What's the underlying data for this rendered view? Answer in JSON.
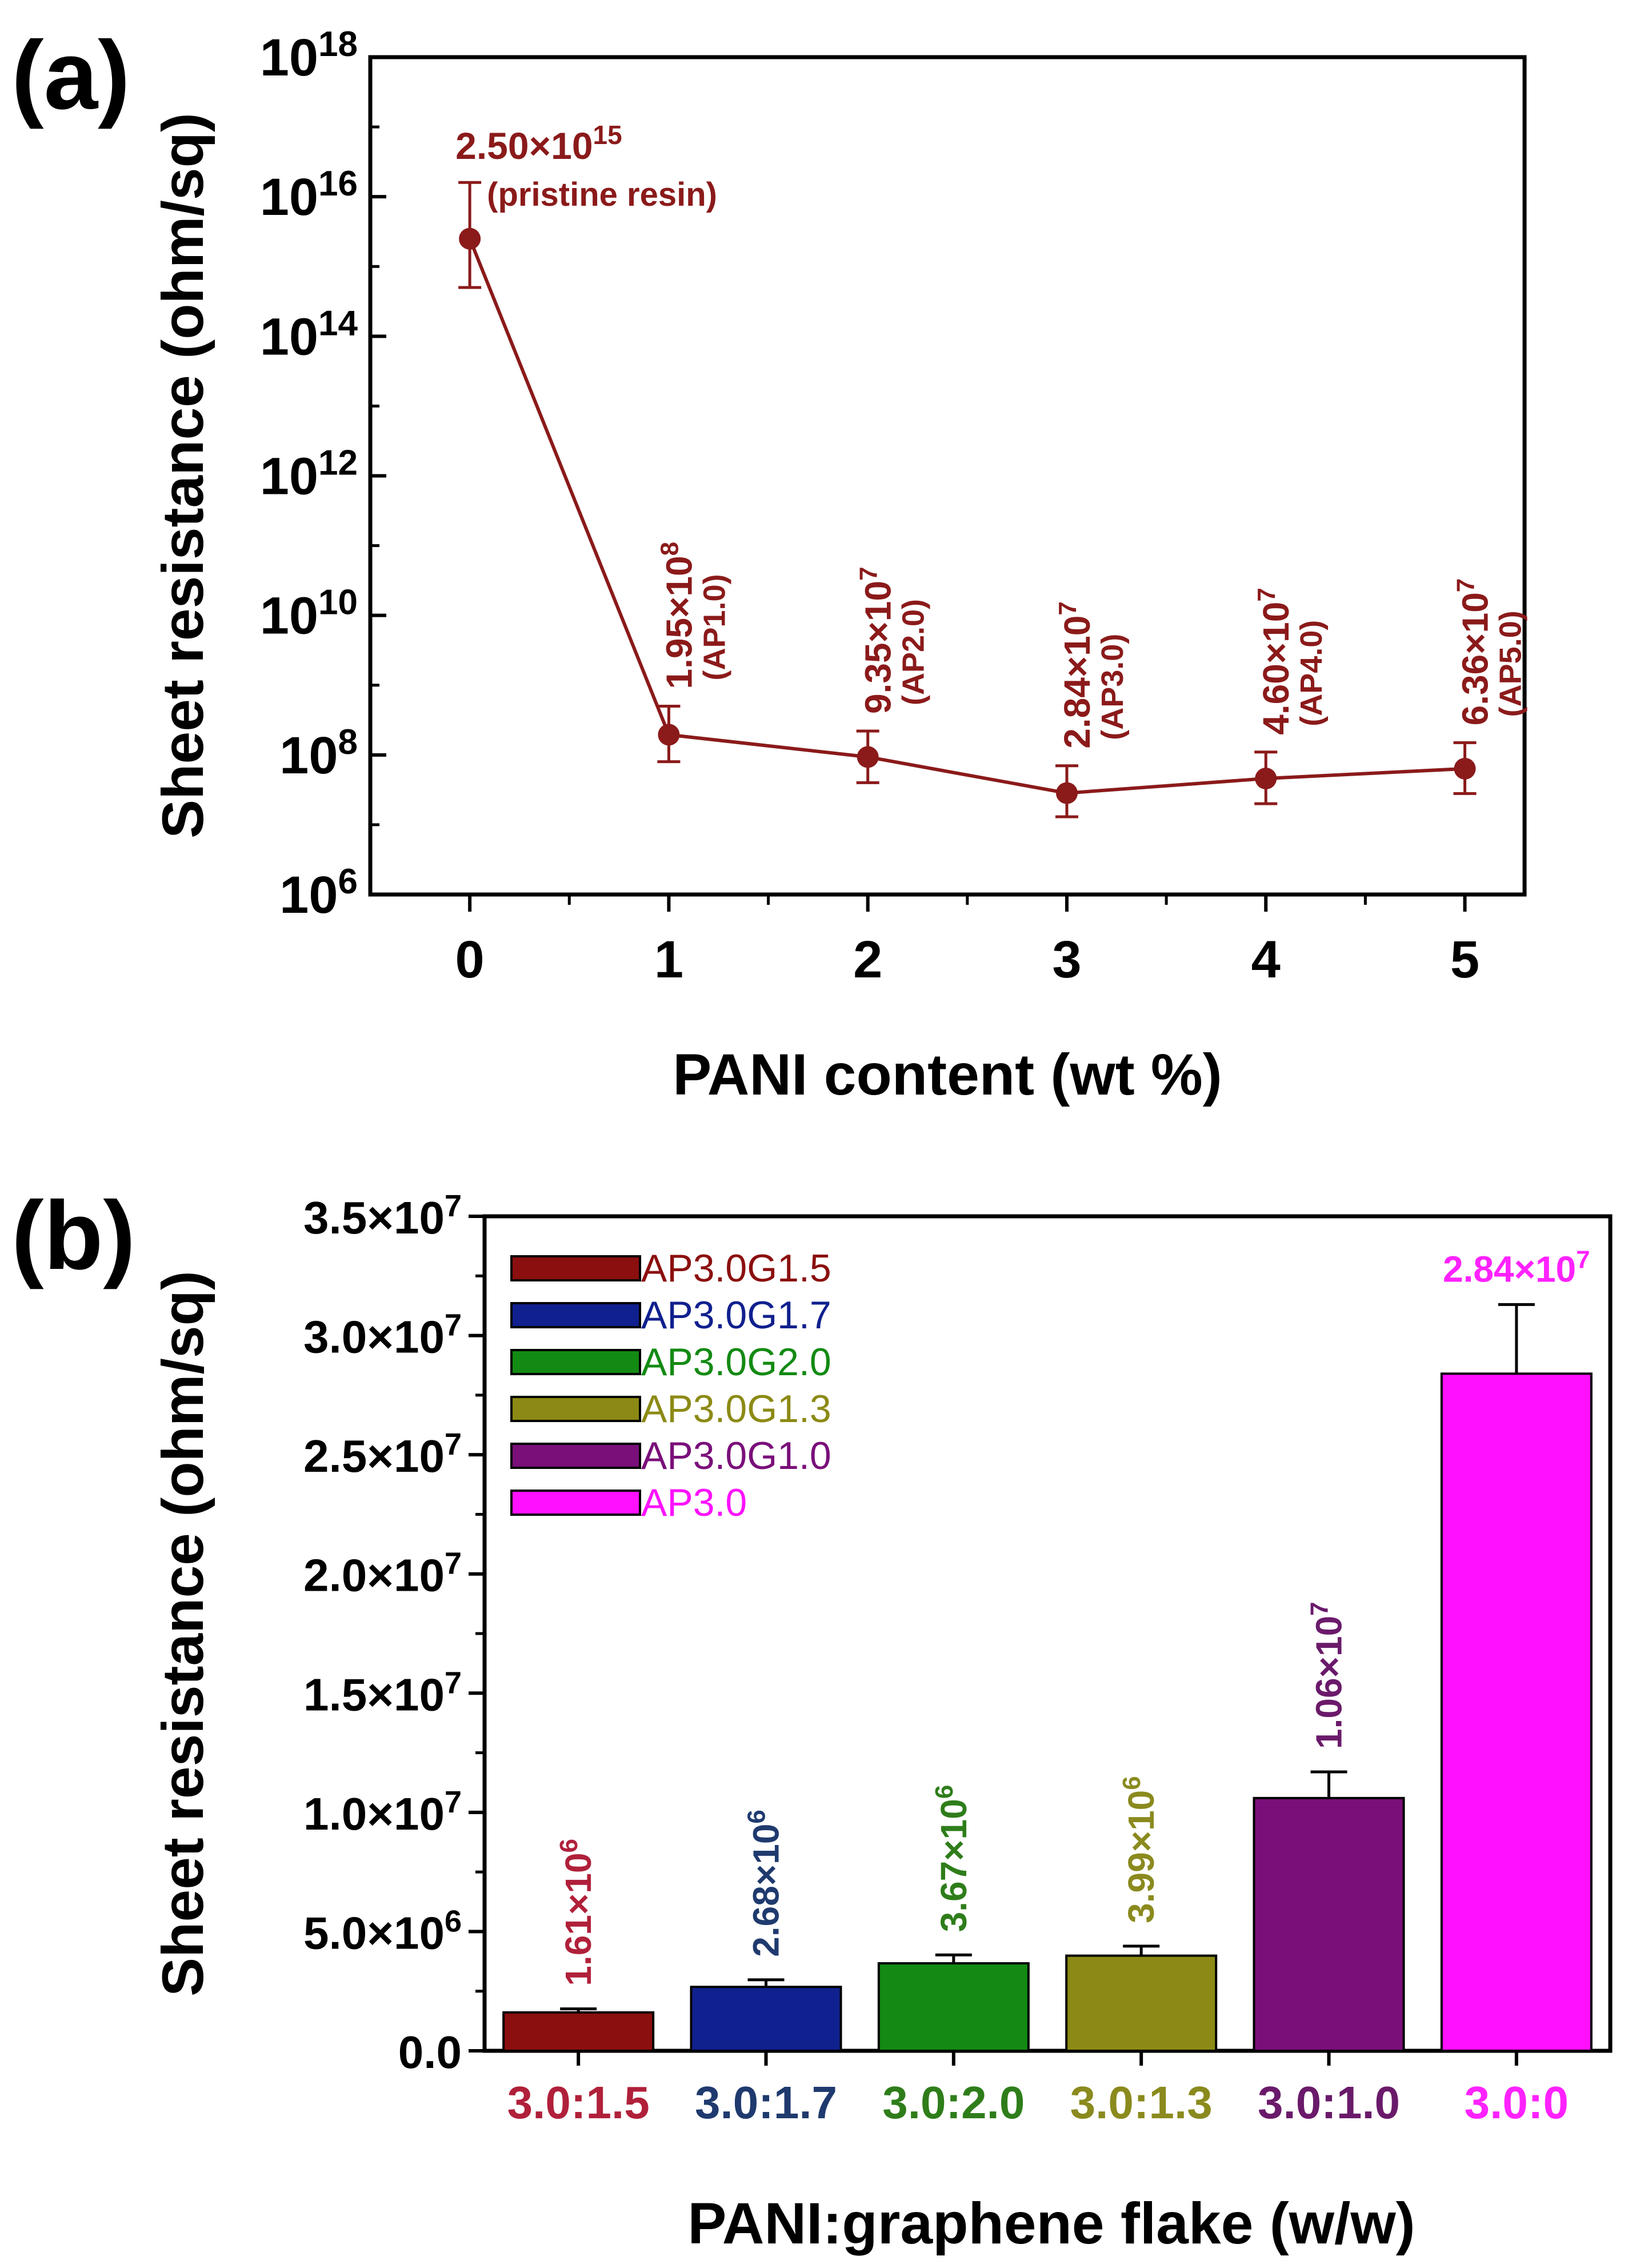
{
  "colors": {
    "line_a": "#8b1a1a",
    "axis": "#000000",
    "bar_outline": "#000000"
  },
  "chart_data": [
    {
      "panel_label": "(a)",
      "type": "line",
      "x_scale": "linear",
      "y_scale": "log",
      "xlabel": "PANI content (wt %)",
      "ylabel": "Sheet resistance (ohm/sq)",
      "xlim": [
        -0.5,
        5.3
      ],
      "ylim": [
        1000000.0,
        1e+18
      ],
      "x_ticks": [
        "0",
        "1",
        "2",
        "3",
        "4",
        "5"
      ],
      "y_ticks": [
        {
          "base": "10",
          "exp": "6",
          "value": 1000000.0
        },
        {
          "base": "10",
          "exp": "8",
          "value": 100000000.0
        },
        {
          "base": "10",
          "exp": "10",
          "value": 10000000000.0
        },
        {
          "base": "10",
          "exp": "12",
          "value": 1000000000000.0
        },
        {
          "base": "10",
          "exp": "14",
          "value": 100000000000000.0
        },
        {
          "base": "10",
          "exp": "16",
          "value": 1e+16
        },
        {
          "base": "10",
          "exp": "18",
          "value": 1e+18
        }
      ],
      "series": [
        {
          "name": "PANI content",
          "color": "#8b1a1a",
          "points": [
            {
              "x": 0,
              "y": 2500000000000000.0,
              "err_low": 500000000000000.0,
              "err_high": 1.6e+16,
              "label_mantissa": "2.50×10",
              "label_exp": "15",
              "label_sample": "(pristine resin)"
            },
            {
              "x": 1,
              "y": 195000000.0,
              "err_low": 80000000.0,
              "err_high": 500000000.0,
              "label_mantissa": "1.95×10",
              "label_exp": "8",
              "label_sample": "(AP1.0)"
            },
            {
              "x": 2,
              "y": 93500000.0,
              "err_low": 40000000.0,
              "err_high": 220000000.0,
              "label_mantissa": "9.35×10",
              "label_exp": "7",
              "label_sample": "(AP2.0)"
            },
            {
              "x": 3,
              "y": 28400000.0,
              "err_low": 13000000.0,
              "err_high": 70000000.0,
              "label_mantissa": "2.84×10",
              "label_exp": "7",
              "label_sample": "(AP3.0)"
            },
            {
              "x": 4,
              "y": 46000000.0,
              "err_low": 20000000.0,
              "err_high": 110000000.0,
              "label_mantissa": "4.60×10",
              "label_exp": "7",
              "label_sample": "(AP4.0)"
            },
            {
              "x": 5,
              "y": 63600000.0,
              "err_low": 28000000.0,
              "err_high": 150000000.0,
              "label_mantissa": "6.36×10",
              "label_exp": "7",
              "label_sample": "(AP5.0)"
            }
          ]
        }
      ]
    },
    {
      "panel_label": "(b)",
      "type": "bar",
      "xlabel": "PANI:graphene flake (w/w)",
      "ylabel": "Sheet resistance (ohm/sq)",
      "ylim": [
        0,
        35000000.0
      ],
      "y_ticks": [
        {
          "value": 0,
          "mantissa": "0.0",
          "exp": ""
        },
        {
          "value": 5000000.0,
          "mantissa": "5.0×10",
          "exp": "6"
        },
        {
          "value": 10000000.0,
          "mantissa": "1.0×10",
          "exp": "7"
        },
        {
          "value": 15000000.0,
          "mantissa": "1.5×10",
          "exp": "7"
        },
        {
          "value": 20000000.0,
          "mantissa": "2.0×10",
          "exp": "7"
        },
        {
          "value": 25000000.0,
          "mantissa": "2.5×10",
          "exp": "7"
        },
        {
          "value": 30000000.0,
          "mantissa": "3.0×10",
          "exp": "7"
        },
        {
          "value": 35000000.0,
          "mantissa": "3.5×10",
          "exp": "7"
        }
      ],
      "legend_position": "top-left",
      "legend": [
        {
          "label": "AP3.0G1.5",
          "color": "#8b0f0f"
        },
        {
          "label": "AP3.0G1.7",
          "color": "#10208e"
        },
        {
          "label": "AP3.0G2.0",
          "color": "#138a13"
        },
        {
          "label": "AP3.0G1.3",
          "color": "#8c8a14"
        },
        {
          "label": "AP3.0G1.0",
          "color": "#7a0f7a"
        },
        {
          "label": "AP3.0",
          "color": "#ff11ff"
        }
      ],
      "bars": [
        {
          "category": "3.0:1.5",
          "value": 1610000.0,
          "err": 150000.0,
          "color": "#8b0f0f",
          "text_color": "#b0203a",
          "label_mantissa": "1.61×10",
          "label_exp": "6",
          "label_rotated": true
        },
        {
          "category": "3.0:1.7",
          "value": 2680000.0,
          "err": 300000.0,
          "color": "#10208e",
          "text_color": "#1f3a6e",
          "label_mantissa": "2.68×10",
          "label_exp": "6",
          "label_rotated": true
        },
        {
          "category": "3.0:2.0",
          "value": 3670000.0,
          "err": 350000.0,
          "color": "#138a13",
          "text_color": "#2e7d1a",
          "label_mantissa": "3.67×10",
          "label_exp": "6",
          "label_rotated": true
        },
        {
          "category": "3.0:1.3",
          "value": 3990000.0,
          "err": 400000.0,
          "color": "#8c8a14",
          "text_color": "#8a8a1e",
          "label_mantissa": "3.99×10",
          "label_exp": "6",
          "label_rotated": true
        },
        {
          "category": "3.0:1.0",
          "value": 10600000.0,
          "err": 1100000.0,
          "color": "#7a0f7a",
          "text_color": "#6a1a6a",
          "label_mantissa": "1.06×10",
          "label_exp": "7",
          "label_rotated": true
        },
        {
          "category": "3.0:0",
          "value": 28400000.0,
          "err": 2900000.0,
          "color": "#ff11ff",
          "text_color": "#ff22ff",
          "label_mantissa": "2.84×10",
          "label_exp": "7",
          "label_rotated": false
        }
      ]
    }
  ]
}
